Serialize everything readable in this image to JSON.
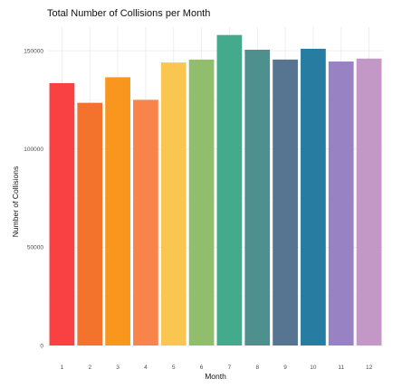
{
  "chart_data": {
    "type": "bar",
    "title": "Total Number of Collisions per Month",
    "xlabel": "Month",
    "ylabel": "Number of Collisions",
    "categories": [
      "1",
      "2",
      "3",
      "4",
      "5",
      "6",
      "7",
      "8",
      "9",
      "10",
      "11",
      "12"
    ],
    "values": [
      133500,
      123500,
      136500,
      125000,
      144000,
      145500,
      158000,
      150500,
      145500,
      151000,
      144500,
      146000
    ],
    "colors": [
      "#f94144",
      "#f3722c",
      "#f8961e",
      "#f9844a",
      "#f9c74f",
      "#90be6d",
      "#43aa8b",
      "#4d908e",
      "#577590",
      "#277da1",
      "#9882c3",
      "#c397c6"
    ],
    "ylim": [
      0,
      162000
    ],
    "yticks": [
      0,
      50000,
      100000,
      150000
    ],
    "ytick_labels": [
      "0",
      "50000",
      "100000",
      "150000"
    ],
    "grid": true,
    "legend": "none"
  }
}
